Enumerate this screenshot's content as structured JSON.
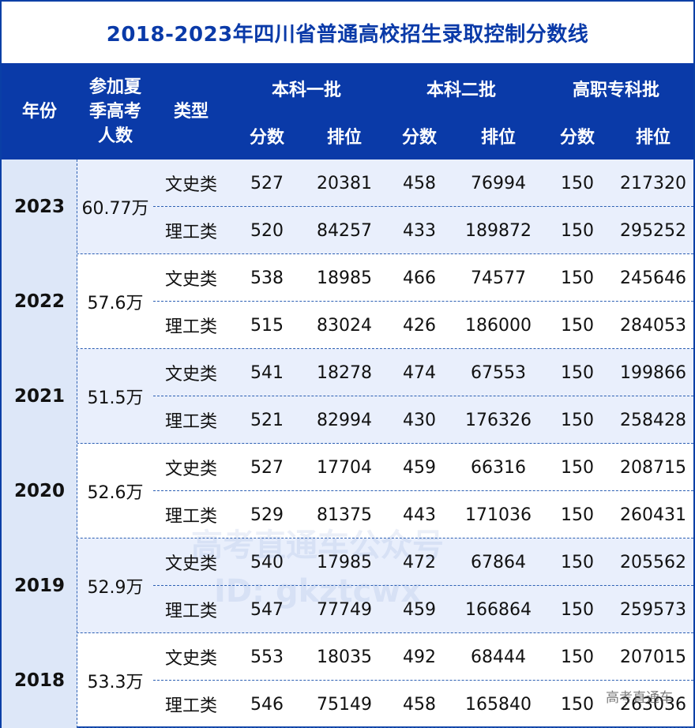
{
  "title": "2018-2023年四川省普通高校招生录取控制分数线",
  "header": {
    "year": "年份",
    "count": "参加夏季高考人数",
    "count_lines": [
      "参加夏",
      "季高考",
      "人数"
    ],
    "type": "类型",
    "groups": [
      "本科一批",
      "本科二批",
      "高职专科批"
    ],
    "sub": [
      "分数",
      "排位",
      "分数",
      "排位",
      "分数",
      "排位"
    ]
  },
  "years": [
    {
      "year": "2023",
      "count": "60.77万",
      "rows": [
        {
          "type": "文史类",
          "vals": [
            "527",
            "20381",
            "458",
            "76994",
            "150",
            "217320"
          ]
        },
        {
          "type": "理工类",
          "vals": [
            "520",
            "84257",
            "433",
            "189872",
            "150",
            "295252"
          ]
        }
      ]
    },
    {
      "year": "2022",
      "count": "57.6万",
      "rows": [
        {
          "type": "文史类",
          "vals": [
            "538",
            "18985",
            "466",
            "74577",
            "150",
            "245646"
          ]
        },
        {
          "type": "理工类",
          "vals": [
            "515",
            "83024",
            "426",
            "186000",
            "150",
            "284053"
          ]
        }
      ]
    },
    {
      "year": "2021",
      "count": "51.5万",
      "rows": [
        {
          "type": "文史类",
          "vals": [
            "541",
            "18278",
            "474",
            "67553",
            "150",
            "199866"
          ]
        },
        {
          "type": "理工类",
          "vals": [
            "521",
            "82994",
            "430",
            "176326",
            "150",
            "258428"
          ]
        }
      ]
    },
    {
      "year": "2020",
      "count": "52.6万",
      "rows": [
        {
          "type": "文史类",
          "vals": [
            "527",
            "17704",
            "459",
            "66316",
            "150",
            "208715"
          ]
        },
        {
          "type": "理工类",
          "vals": [
            "529",
            "81375",
            "443",
            "171036",
            "150",
            "260431"
          ]
        }
      ]
    },
    {
      "year": "2019",
      "count": "52.9万",
      "rows": [
        {
          "type": "文史类",
          "vals": [
            "540",
            "17985",
            "472",
            "67864",
            "150",
            "205562"
          ]
        },
        {
          "type": "理工类",
          "vals": [
            "547",
            "77749",
            "459",
            "166864",
            "150",
            "259573"
          ]
        }
      ]
    },
    {
      "year": "2018",
      "count": "53.3万",
      "rows": [
        {
          "type": "文史类",
          "vals": [
            "553",
            "18035",
            "492",
            "68444",
            "150",
            "207015"
          ]
        },
        {
          "type": "理工类",
          "vals": [
            "546",
            "75149",
            "458",
            "165840",
            "150",
            "263036"
          ]
        }
      ]
    }
  ],
  "watermark": [
    "高考直通车公众号",
    "ID: gkztcwx"
  ],
  "footer_mark": "高考直通车"
}
